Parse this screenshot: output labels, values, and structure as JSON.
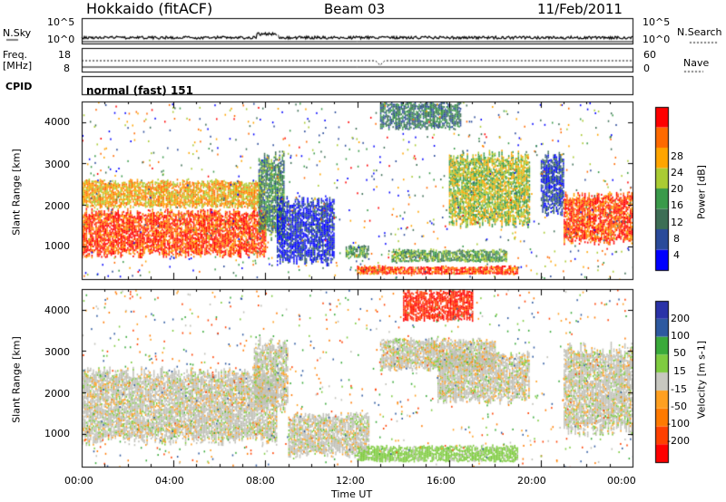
{
  "header": {
    "station": "Hokkaido (fitACF)",
    "beam": "Beam 03",
    "date": "11/Feb/2011"
  },
  "side_labels": {
    "nsky": "N.Sky",
    "freq": "Freq.",
    "freq_unit": "[MHz]",
    "cpid": "CPID",
    "nsearch": "N.Search",
    "nave": "Nave"
  },
  "cpid_text": "normal (fast) 151",
  "strip_ticks": {
    "noise_left": [
      "10^5",
      "10^0"
    ],
    "noise_right": [
      "10^5",
      "10^0"
    ],
    "freq_left": [
      "18",
      "8"
    ],
    "nave_right": [
      "60",
      "0"
    ]
  },
  "colors": {
    "power": [
      "#0000ff",
      "#2a4a9a",
      "#3d6e55",
      "#3a9a4a",
      "#aacc33",
      "#ffa500",
      "#ff6a00",
      "#ff0000"
    ],
    "velocity": [
      "#2a32a8",
      "#2d59a0",
      "#3aaa3a",
      "#7fcc40",
      "#c8c8c0",
      "#ffa020",
      "#ff7a00",
      "#ff4000",
      "#ff0000"
    ],
    "ground_scatter": "#c0c0b8"
  },
  "chart_data": [
    {
      "type": "heatmap",
      "panel": "power",
      "ylabel": "Slant Range [km]",
      "y_ticks": [
        "4000",
        "3000",
        "2000",
        "1000"
      ],
      "ylim": [
        200,
        4500
      ],
      "colorbar_label": "Power [dB]",
      "colorbar_ticks": [
        "28",
        "24",
        "20",
        "16",
        "12",
        "8",
        "4"
      ],
      "regions": [
        {
          "t": [
            0.0,
            8.0
          ],
          "range": [
            700,
            1900
          ],
          "value": 28
        },
        {
          "t": [
            0.0,
            7.8
          ],
          "range": [
            1900,
            2600
          ],
          "value": 22
        },
        {
          "t": [
            7.7,
            8.8
          ],
          "range": [
            1100,
            3300
          ],
          "value": 12
        },
        {
          "t": [
            8.5,
            11.0
          ],
          "range": [
            500,
            2200
          ],
          "value": 4
        },
        {
          "t": [
            11.5,
            12.5
          ],
          "range": [
            700,
            1000
          ],
          "value": 14
        },
        {
          "t": [
            12.0,
            19.0
          ],
          "range": [
            300,
            500
          ],
          "value": 28
        },
        {
          "t": [
            13.5,
            18.5
          ],
          "range": [
            600,
            900
          ],
          "value": 14
        },
        {
          "t": [
            16.0,
            19.5
          ],
          "range": [
            1400,
            3300
          ],
          "value": 18
        },
        {
          "t": [
            13.0,
            16.5
          ],
          "range": [
            3800,
            4500
          ],
          "value": 10
        },
        {
          "t": [
            20.0,
            21.0
          ],
          "range": [
            1700,
            3300
          ],
          "value": 6
        },
        {
          "t": [
            21.0,
            24.0
          ],
          "range": [
            1000,
            2300
          ],
          "value": 28
        }
      ]
    },
    {
      "type": "heatmap",
      "panel": "velocity",
      "ylabel": "Slant Range [km]",
      "y_ticks": [
        "4000",
        "3000",
        "2000",
        "1000"
      ],
      "ylim": [
        200,
        4500
      ],
      "xlabel": "Time UT",
      "x_ticks": [
        "00:00",
        "04:00",
        "08:00",
        "12:00",
        "16:00",
        "20:00",
        "00:00"
      ],
      "xlim": [
        0,
        24
      ],
      "colorbar_label": "Velocity [m s-1]",
      "colorbar_ticks": [
        "200",
        "100",
        "50",
        "15",
        "-15",
        "-50",
        "-100",
        "-200"
      ],
      "regions": [
        {
          "t": [
            0.0,
            8.5
          ],
          "range": [
            700,
            2600
          ],
          "value": 0
        },
        {
          "t": [
            7.5,
            9.0
          ],
          "range": [
            1500,
            3300
          ],
          "value": 0
        },
        {
          "t": [
            9.0,
            12.5
          ],
          "range": [
            400,
            1500
          ],
          "value": 0
        },
        {
          "t": [
            12.0,
            19.0
          ],
          "range": [
            300,
            700
          ],
          "value": 30
        },
        {
          "t": [
            13.0,
            18.0
          ],
          "range": [
            2500,
            3300
          ],
          "value": 0
        },
        {
          "t": [
            15.5,
            19.5
          ],
          "range": [
            1700,
            3000
          ],
          "value": 0
        },
        {
          "t": [
            14.0,
            17.0
          ],
          "range": [
            3700,
            4500
          ],
          "value": -200
        },
        {
          "t": [
            21.0,
            24.0
          ],
          "range": [
            900,
            3200
          ],
          "value": 0
        }
      ]
    }
  ]
}
